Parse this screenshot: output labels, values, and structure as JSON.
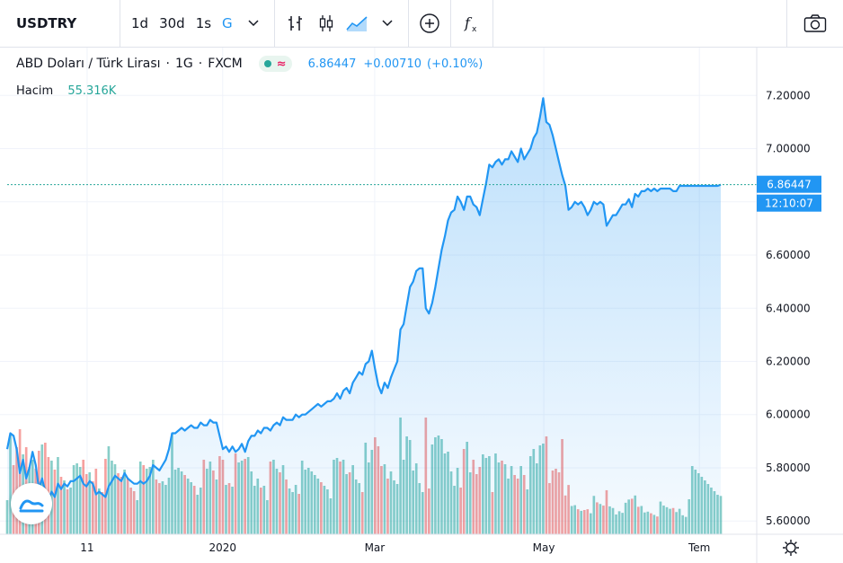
{
  "toolbar": {
    "symbol": "USDTRY",
    "intervals": [
      {
        "label": "1d",
        "active": false
      },
      {
        "label": "30d",
        "active": false
      },
      {
        "label": "1s",
        "active": false
      },
      {
        "label": "G",
        "active": true
      }
    ],
    "icons": [
      "chevron-down-icon",
      "bar-chart-icon",
      "candlestick-icon",
      "area-chart-icon",
      "chevron-down-icon",
      "add-compare-icon",
      "indicators-icon"
    ],
    "snapshot_icon": "camera-icon"
  },
  "legend": {
    "title": "ABD Doları / Türk Lirası",
    "interval": "1G",
    "exchange": "FXCM",
    "price": "6.86447",
    "change": "+0.00710",
    "change_pct": "(+0.10%)"
  },
  "volume_legend": {
    "label": "Hacim",
    "value": "55.316K"
  },
  "last_price_label": "6.86447",
  "countdown_label": "12:10:07",
  "settings_icon": "gear-icon",
  "colors": {
    "line": "#2196f3",
    "up_volume": "#26a69a",
    "down_volume": "#ef5350",
    "accent": "#2196f3"
  },
  "chart_data": {
    "type": "area",
    "title": "ABD Doları / Türk Lirası",
    "ylim": [
      5.55,
      7.38
    ],
    "y_ticks": [
      "5.60000",
      "5.80000",
      "6.00000",
      "6.20000",
      "6.40000",
      "6.60000",
      "6.80000",
      "7.00000",
      "7.20000"
    ],
    "x_ticks": [
      "11",
      "2020",
      "Mar",
      "May",
      "Tem"
    ],
    "series": [
      {
        "values": [
          5.87,
          5.93,
          5.92,
          5.87,
          5.78,
          5.83,
          5.76,
          5.8,
          5.86,
          5.81,
          5.72,
          5.76,
          5.71,
          5.68,
          5.71,
          5.69,
          5.74,
          5.72,
          5.74,
          5.73,
          5.75,
          5.75,
          5.76,
          5.77,
          5.74,
          5.73,
          5.75,
          5.74,
          5.7,
          5.71,
          5.7,
          5.69,
          5.73,
          5.75,
          5.77,
          5.76,
          5.75,
          5.78,
          5.76,
          5.75,
          5.74,
          5.74,
          5.75,
          5.74,
          5.75,
          5.77,
          5.81,
          5.8,
          5.79,
          5.81,
          5.83,
          5.87,
          5.93,
          5.93,
          5.94,
          5.95,
          5.94,
          5.95,
          5.96,
          5.95,
          5.95,
          5.97,
          5.96,
          5.96,
          5.98,
          5.97,
          5.97,
          5.92,
          5.87,
          5.88,
          5.86,
          5.88,
          5.86,
          5.87,
          5.89,
          5.86,
          5.9,
          5.92,
          5.92,
          5.94,
          5.93,
          5.95,
          5.95,
          5.94,
          5.96,
          5.97,
          5.96,
          5.99,
          5.98,
          5.98,
          5.98,
          6.0,
          5.99,
          6.0,
          6.0,
          6.01,
          6.02,
          6.03,
          6.04,
          6.03,
          6.04,
          6.05,
          6.05,
          6.06,
          6.08,
          6.06,
          6.09,
          6.1,
          6.08,
          6.12,
          6.14,
          6.16,
          6.15,
          6.19,
          6.2,
          6.24,
          6.17,
          6.11,
          6.08,
          6.12,
          6.1,
          6.14,
          6.17,
          6.2,
          6.32,
          6.34,
          6.41,
          6.48,
          6.5,
          6.54,
          6.55,
          6.55,
          6.4,
          6.38,
          6.42,
          6.48,
          6.55,
          6.62,
          6.67,
          6.73,
          6.76,
          6.77,
          6.82,
          6.8,
          6.77,
          6.82,
          6.82,
          6.79,
          6.78,
          6.75,
          6.81,
          6.87,
          6.94,
          6.93,
          6.95,
          6.96,
          6.94,
          6.96,
          6.96,
          6.99,
          6.97,
          6.95,
          7.0,
          6.96,
          6.98,
          7.0,
          7.04,
          7.06,
          7.12,
          7.19,
          7.1,
          7.09,
          7.05,
          7.0,
          6.95,
          6.9,
          6.86,
          6.77,
          6.78,
          6.8,
          6.79,
          6.8,
          6.78,
          6.75,
          6.77,
          6.8,
          6.79,
          6.8,
          6.79,
          6.71,
          6.73,
          6.75,
          6.75,
          6.77,
          6.79,
          6.79,
          6.81,
          6.78,
          6.83,
          6.82,
          6.84,
          6.84,
          6.85,
          6.84,
          6.85,
          6.84,
          6.85,
          6.85,
          6.85,
          6.85,
          6.84,
          6.84,
          6.86,
          6.86,
          6.86,
          6.86,
          6.86,
          6.86,
          6.86,
          6.86,
          6.86,
          6.86,
          6.86,
          6.86,
          6.86,
          6.86447
        ]
      }
    ]
  }
}
